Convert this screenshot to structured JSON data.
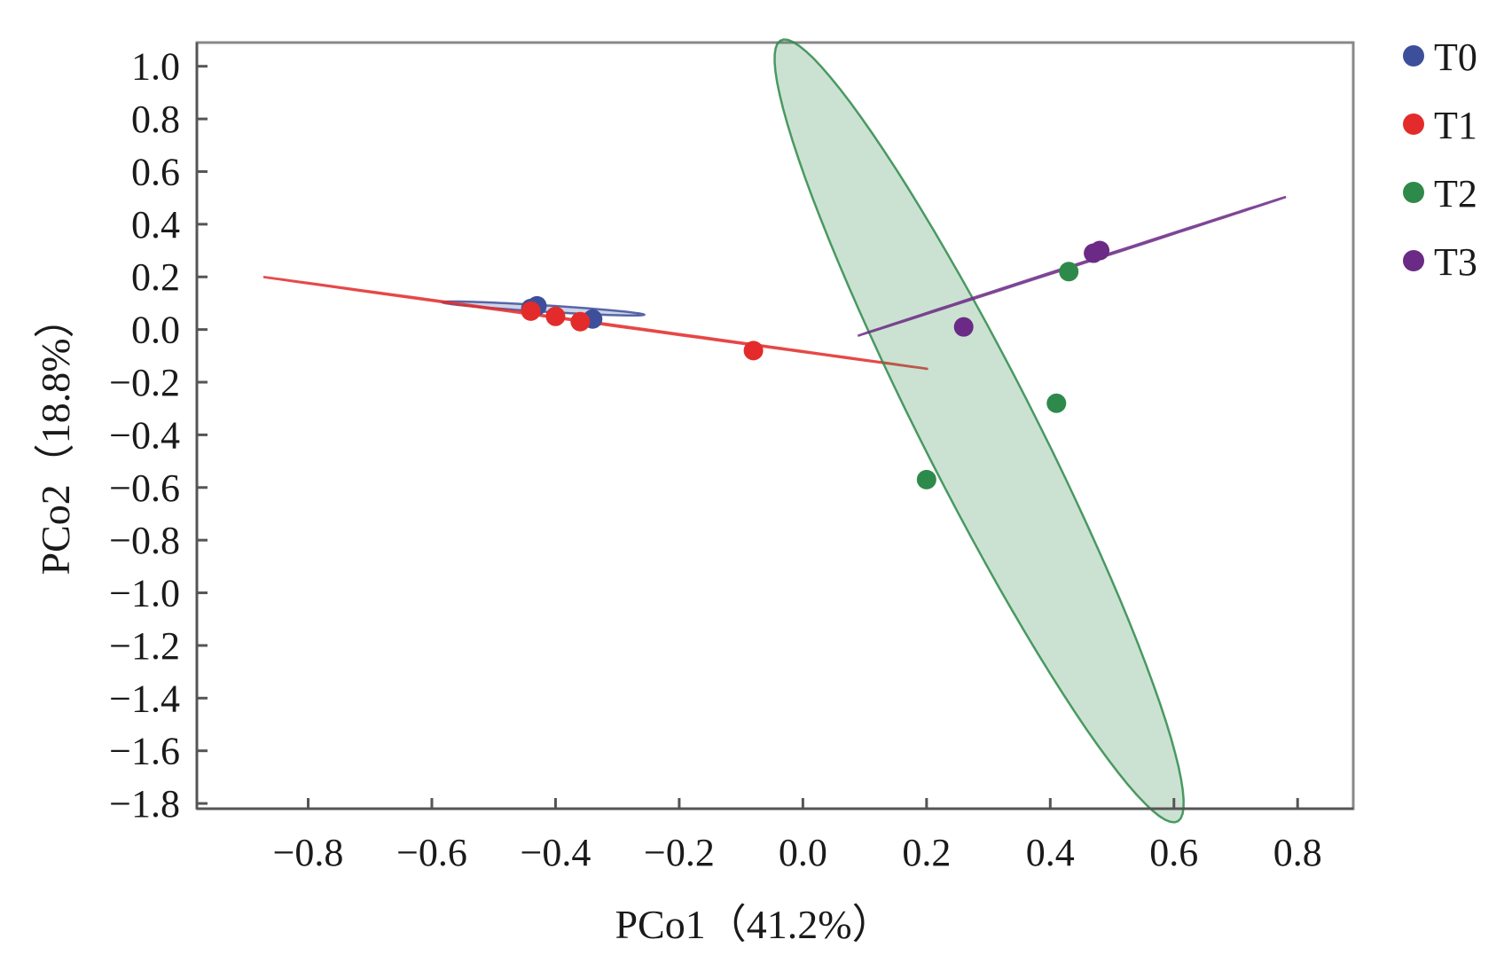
{
  "chart_data": {
    "type": "scatter",
    "xlabel": "PCo1（41.2%）",
    "ylabel": "PCo2（18.8%）",
    "xlim": [
      -0.98,
      0.89
    ],
    "ylim": [
      -1.82,
      1.09
    ],
    "x_ticks": [
      -0.8,
      -0.6,
      -0.4,
      -0.2,
      0.0,
      0.2,
      0.4,
      0.6,
      0.8
    ],
    "x_tick_labels": [
      "−0.8",
      "−0.6",
      "−0.4",
      "−0.2",
      "0.0",
      "0.2",
      "0.4",
      "0.6",
      "0.8"
    ],
    "y_ticks": [
      1.0,
      0.8,
      0.6,
      0.4,
      0.2,
      0.0,
      -0.2,
      -0.4,
      -0.6,
      -0.8,
      -1.0,
      -1.2,
      -1.4,
      -1.6,
      -1.8
    ],
    "y_tick_labels": [
      "1.0",
      "0.8",
      "0.6",
      "0.4",
      "0.2",
      "0.0",
      "−0.2",
      "−0.4",
      "−0.6",
      "−0.8",
      "−1.0",
      "−1.2",
      "−1.4",
      "−1.6",
      "−1.8"
    ],
    "grid": false,
    "legend_position": "top-right, outside plot",
    "series": [
      {
        "name": "T0",
        "color": "#3d4f9a",
        "points": [
          [
            -0.44,
            0.08
          ],
          [
            -0.43,
            0.09
          ],
          [
            -0.34,
            0.04
          ]
        ],
        "ellipse": {
          "cx": -0.42,
          "cy": 0.08,
          "rx": 0.165,
          "ry": 0.012,
          "angle_deg": -8.3
        }
      },
      {
        "name": "T1",
        "color": "#e32b2b",
        "points": [
          [
            -0.44,
            0.07
          ],
          [
            -0.4,
            0.05
          ],
          [
            -0.36,
            0.03
          ],
          [
            -0.08,
            -0.08
          ]
        ],
        "ellipse": {
          "cx": -0.335,
          "cy": 0.025,
          "rx": 0.565,
          "ry": 0.002,
          "angle_deg": -18
        }
      },
      {
        "name": "T2",
        "color": "#2e8a4a",
        "points": [
          [
            0.2,
            -0.57
          ],
          [
            0.41,
            -0.28
          ],
          [
            0.43,
            0.22
          ]
        ],
        "ellipse": {
          "cx": 0.285,
          "cy": -0.385,
          "rx": 0.1,
          "ry": 1.52,
          "angle_deg": 12
        }
      },
      {
        "name": "T3",
        "color": "#6b2a85",
        "points": [
          [
            0.26,
            0.01
          ],
          [
            0.47,
            0.29
          ],
          [
            0.48,
            0.3
          ]
        ],
        "ellipse": {
          "cx": 0.435,
          "cy": 0.24,
          "rx": 0.435,
          "ry": 0.002,
          "angle_deg": 37.3
        }
      }
    ]
  }
}
